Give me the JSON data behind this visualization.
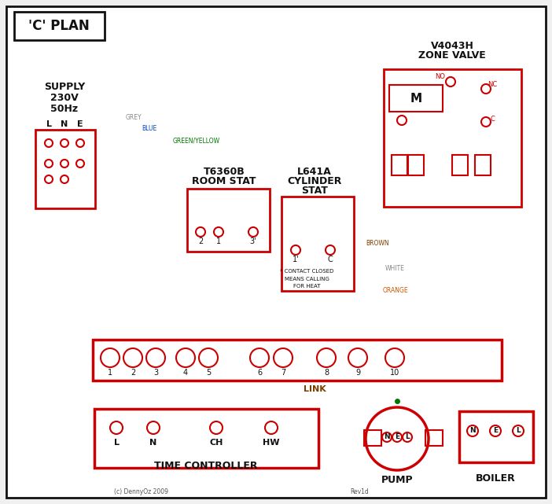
{
  "bg": "#f0f0f0",
  "white": "#ffffff",
  "red": "#cc0000",
  "blue": "#0044cc",
  "green": "#007700",
  "grey": "#888888",
  "brown": "#7B3F00",
  "black": "#111111",
  "orange": "#cc5500",
  "dkgrey": "#555555",
  "title": "'C' PLAN",
  "copyright": "(c) DennyOz 2009",
  "rev": "Rev1d"
}
